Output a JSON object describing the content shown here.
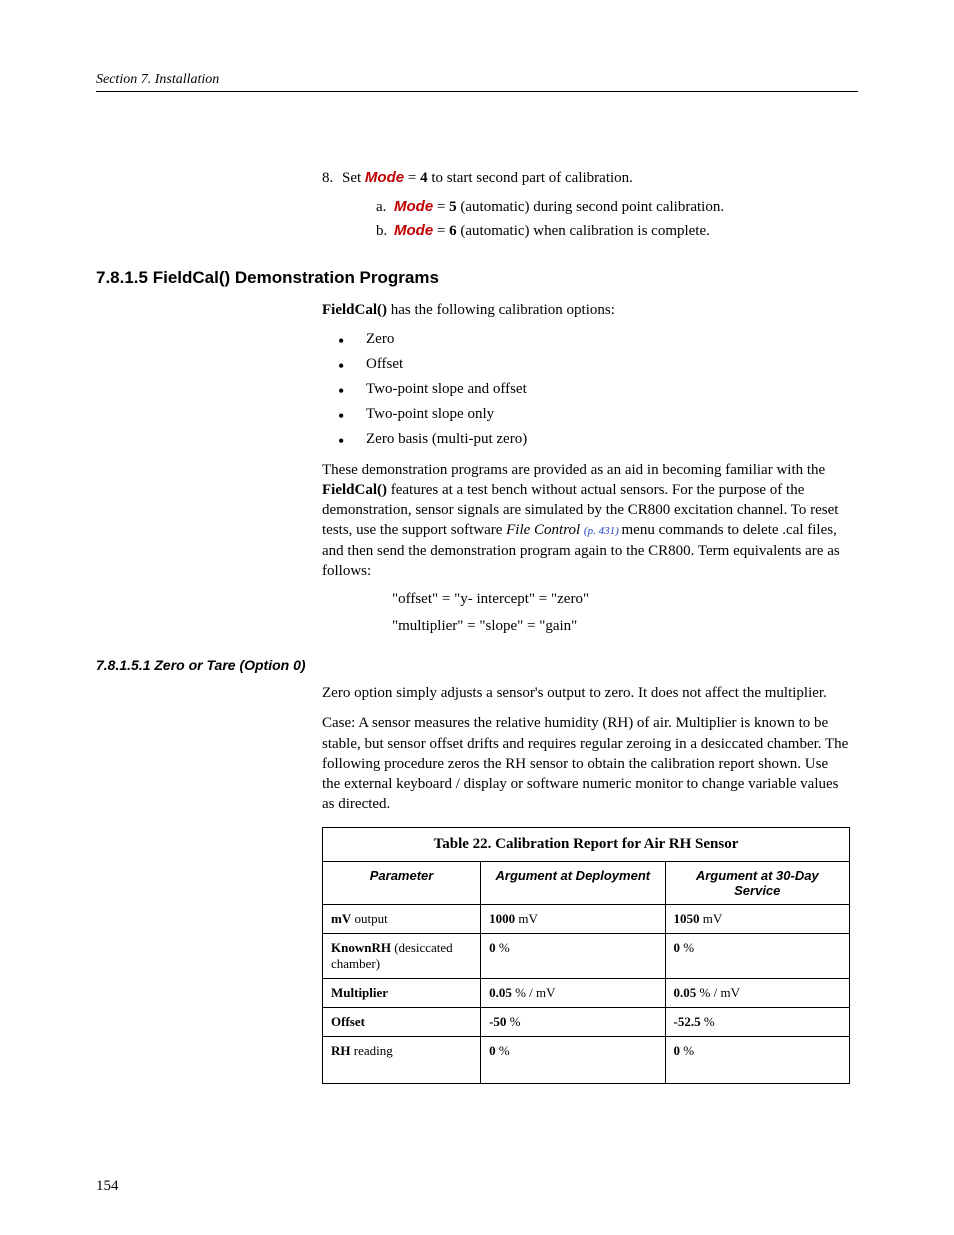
{
  "header": "Section 7.  Installation",
  "step8": {
    "num": "8.",
    "pre": "Set ",
    "mode": "Mode",
    "mid": " = ",
    "val": "4",
    "post": " to start second part of calibration.",
    "sub": [
      {
        "lett": "a.",
        "mode": "Mode",
        "mid": " = ",
        "val": "5",
        "post": " (automatic) during second point calibration."
      },
      {
        "lett": "b.",
        "mode": "Mode",
        "mid": " = ",
        "val": "6",
        "post": " (automatic) when calibration is complete."
      }
    ]
  },
  "h3": "7.8.1.5 FieldCal() Demonstration Programs",
  "intro": {
    "bold": "FieldCal()",
    "rest": " has the following calibration options:"
  },
  "bullets": [
    "Zero",
    "Offset",
    "Two-point slope and offset",
    "Two-point slope only",
    "Zero basis (multi-put zero)"
  ],
  "para1": {
    "seg1": "These demonstration programs are provided as an aid in becoming familiar with the ",
    "bold1": "FieldCal()",
    "seg2": " features at a test bench without actual sensors. For the purpose of the demonstration, sensor signals are simulated by the CR800 excitation channel.  To reset tests, use the support software ",
    "ital": "File Control ",
    "link": "(p. 431) ",
    "seg3": "menu commands to delete .cal files, and then send the demonstration program again to the CR800. Term equivalents are as follows:"
  },
  "equiv1": "\"offset\" = \"y- intercept\" = \"zero\"",
  "equiv2": "\"multiplier\" = \"slope\" = \"gain\"",
  "h4": "7.8.1.5.1 Zero or Tare (Option 0)",
  "zero_p1": "Zero option simply adjusts a sensor's output to zero.  It does not affect the multiplier.",
  "zero_p2": "Case: A sensor measures the relative humidity (RH) of air.  Multiplier is known to be stable, but sensor offset drifts and requires regular zeroing in a desiccated chamber.  The following procedure zeros the RH sensor to obtain the calibration report shown. Use the external keyboard / display or software numeric monitor to change variable values as directed.",
  "table": {
    "title": "Table 22. Calibration Report for Air RH Sensor",
    "headers": [
      "Parameter",
      "Argument at Deployment",
      "Argument at 30-Day Service"
    ],
    "col_widths": [
      "30%",
      "35%",
      "35%"
    ],
    "rows": [
      {
        "p_bold": "mV",
        "p_rest": " output",
        "d": {
          "b": "1000",
          "r": " mV"
        },
        "s": {
          "b": "1050",
          "r": " mV"
        }
      },
      {
        "p_bold": "KnownRH",
        "p_rest": " (desiccated chamber)",
        "d": {
          "b": "0",
          "r": " %"
        },
        "s": {
          "b": "0",
          "r": " %"
        }
      },
      {
        "p_bold": "Multiplier",
        "p_rest": "",
        "d": {
          "b": "0.05",
          "r": " % / mV"
        },
        "s": {
          "b": "0.05",
          "r": " % / mV"
        }
      },
      {
        "p_bold": "Offset",
        "p_rest": "",
        "d": {
          "b": "-50",
          "r": " %"
        },
        "s": {
          "b": "-52.5",
          "r": " %"
        }
      },
      {
        "p_bold": "RH",
        "p_rest": " reading",
        "d": {
          "b": "0",
          "r": " %"
        },
        "s": {
          "b": "0",
          "r": " %"
        },
        "tall": true
      }
    ]
  },
  "pagenum": "154"
}
